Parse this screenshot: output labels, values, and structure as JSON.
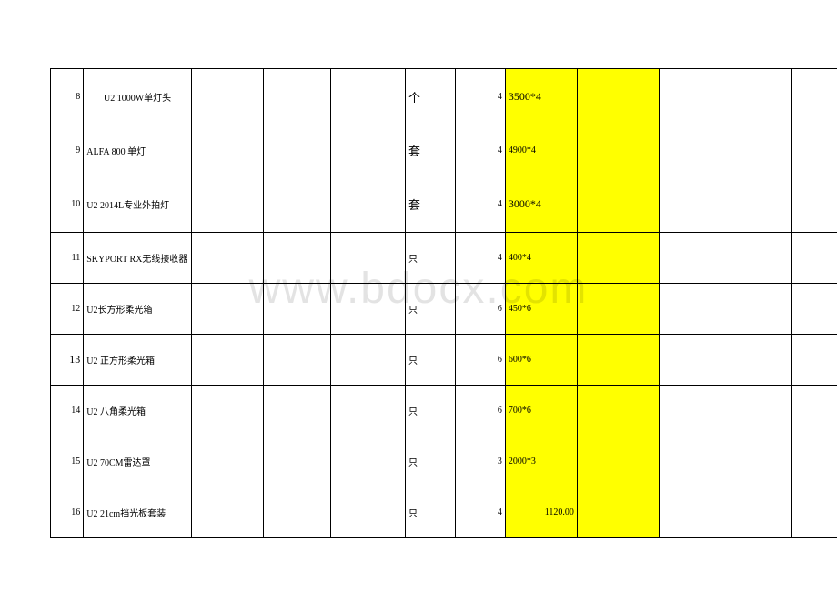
{
  "watermark": "www.bdocx.com",
  "table": {
    "highlight_color": "#ffff00",
    "border_color": "#000000",
    "rows": [
      {
        "num": "8",
        "name": "U2 1000W单灯头",
        "unit": "个",
        "qty": "4",
        "price": "3500*4",
        "tall": true,
        "unit_large": true,
        "price_large": true
      },
      {
        "num": "9",
        "name": "ALFA 800  单灯",
        "unit": "套",
        "qty": "4",
        "price": "4900*4",
        "tall": false,
        "unit_large": true,
        "price_large": false
      },
      {
        "num": "10",
        "name": "U2 2014L专业外拍灯",
        "unit": "套",
        "qty": "4",
        "price": "3000*4",
        "tall": true,
        "unit_large": true,
        "price_large": true
      },
      {
        "num": "11",
        "name": "SKYPORT  RX无线接收器",
        "unit": "只",
        "qty": "4",
        "price": "400*4",
        "tall": false,
        "unit_large": false,
        "price_large": false
      },
      {
        "num": "12",
        "name": "U2长方形柔光箱",
        "unit": "只",
        "qty": "6",
        "price": "450*6",
        "tall": false,
        "unit_large": false,
        "price_large": false
      },
      {
        "num": "13",
        "name": "U2 正方形柔光箱",
        "unit": "只",
        "qty": "6",
        "price": "600*6",
        "tall": false,
        "unit_large": false,
        "price_large": false,
        "num_large": true
      },
      {
        "num": "14",
        "name": "U2 八角柔光箱",
        "unit": "只",
        "qty": "6",
        "price": "700*6",
        "tall": false,
        "unit_large": false,
        "price_large": false
      },
      {
        "num": "15",
        "name": "U2 70CM雷达罩",
        "unit": "只",
        "qty": "3",
        "price": "2000*3",
        "tall": false,
        "unit_large": false,
        "price_large": false
      },
      {
        "num": "16",
        "name": "U2 21cm挡光板套装",
        "unit": "只",
        "qty": "4",
        "price": " 1120.00",
        "tall": false,
        "unit_large": false,
        "price_large": false,
        "price_right": true
      }
    ]
  }
}
